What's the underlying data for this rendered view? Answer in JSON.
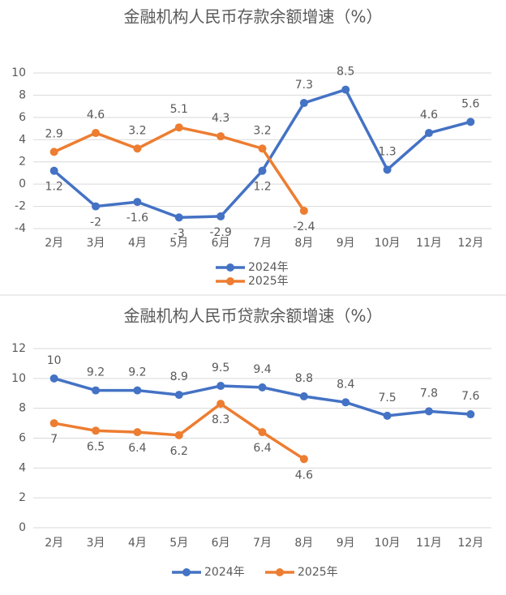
{
  "chart_data": [
    {
      "type": "line",
      "title": "金融机构人民币存款余额增速（%）",
      "categories": [
        "2月",
        "3月",
        "4月",
        "5月",
        "6月",
        "7月",
        "8月",
        "9月",
        "10月",
        "11月",
        "12月"
      ],
      "series": [
        {
          "name": "2024年",
          "color": "#4472c4",
          "values": [
            1.2,
            -2,
            -1.6,
            -3,
            -2.9,
            1.2,
            7.3,
            8.5,
            1.3,
            4.6,
            5.6
          ]
        },
        {
          "name": "2025年",
          "color": "#ed7d31",
          "values": [
            2.9,
            4.6,
            3.2,
            5.1,
            4.3,
            3.2,
            -2.4,
            null,
            null,
            null,
            null
          ]
        }
      ],
      "ylim": [
        -4,
        10
      ],
      "yticks": [
        -4,
        -2,
        0,
        2,
        4,
        6,
        8,
        10
      ],
      "grid": true,
      "legend": "bottom"
    },
    {
      "type": "line",
      "title": "金融机构人民币贷款余额增速（%）",
      "categories": [
        "2月",
        "3月",
        "4月",
        "5月",
        "6月",
        "7月",
        "8月",
        "9月",
        "10月",
        "11月",
        "12月"
      ],
      "series": [
        {
          "name": "2024年",
          "color": "#4472c4",
          "values": [
            10,
            9.2,
            9.2,
            8.9,
            9.5,
            9.4,
            8.8,
            8.4,
            7.5,
            7.8,
            7.6
          ]
        },
        {
          "name": "2025年",
          "color": "#ed7d31",
          "values": [
            7,
            6.5,
            6.4,
            6.2,
            8.3,
            6.4,
            4.6,
            null,
            null,
            null,
            null
          ]
        }
      ],
      "ylim": [
        0,
        12
      ],
      "yticks": [
        0,
        2,
        4,
        6,
        8,
        10,
        12
      ],
      "grid": true,
      "legend": "bottom"
    }
  ]
}
